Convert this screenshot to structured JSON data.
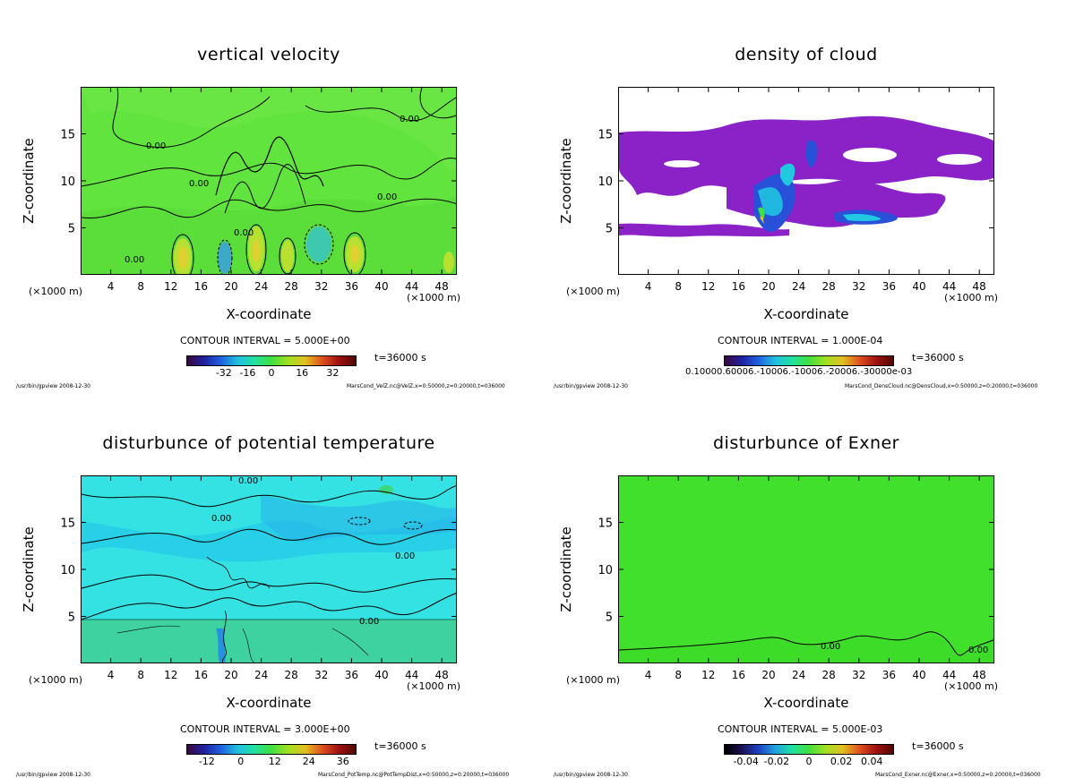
{
  "panels": [
    {
      "title": "vertical velocity",
      "ylabel": "Z-coordinate",
      "xlabel": "X-coordinate",
      "unit_left": "(×1000 m)",
      "unit_right": "(×1000 m)",
      "contour_interval": "CONTOUR INTERVAL = 5.000E+00",
      "time": "t=36000 s",
      "colorbar_ticks": [
        "-32",
        "-16",
        "0",
        "16",
        "32"
      ],
      "footer_left": "/usr/bin/gpview 2008-12-30",
      "footer_right": "MarsCond_VelZ.nc@VelZ,x=0:50000,z=0:20000,t=036000",
      "contour_labels": [
        "0.00",
        "0.00",
        "0.00",
        "0.00",
        "0.00",
        "0.00"
      ],
      "colors": {
        "background": "#5ce03a",
        "fill": "#3ed82a"
      }
    },
    {
      "title": "density of cloud",
      "ylabel": "Z-coordinate",
      "xlabel": "X-coordinate",
      "unit_left": "(×1000 m)",
      "unit_right": "(×1000 m)",
      "contour_interval": "CONTOUR INTERVAL = 1.000E-04",
      "time": "t=36000 s",
      "colorbar_ticks": [
        "0.10000.60006.-10006.-10006.-20006.-30000e-03"
      ],
      "footer_left": "/usr/bin/gpview 2008-12-30",
      "footer_right": "MarsCond_DensCloud.nc@DensCloud,x=0:50000,z=0:20000,t=036000",
      "contour_labels": [],
      "colors": {
        "background": "#ffffff",
        "fill": "#8a1fc8"
      }
    },
    {
      "title": "disturbunce of potential temperature",
      "ylabel": "Z-coordinate",
      "xlabel": "X-coordinate",
      "unit_left": "(×1000 m)",
      "unit_right": "(×1000 m)",
      "contour_interval": "CONTOUR INTERVAL = 3.000E+00",
      "time": "t=36000 s",
      "colorbar_ticks": [
        "-12",
        "0",
        "12",
        "24",
        "36"
      ],
      "footer_left": "/usr/bin/gpview 2008-12-30",
      "footer_right": "MarsCond_PotTemp.nc@PotTempDist,x=0:50000,z=0:20000,t=036000",
      "contour_labels": [
        "0.00",
        "0.00",
        "0.00",
        "0.00"
      ],
      "colors": {
        "background": "#2ee6e0",
        "fill": "#3ccf9a"
      }
    },
    {
      "title": "disturbunce of Exner",
      "ylabel": "Z-coordinate",
      "xlabel": "X-coordinate",
      "unit_left": "(×1000 m)",
      "unit_right": "(×1000 m)",
      "contour_interval": "CONTOUR INTERVAL = 5.000E-03",
      "time": "t=36000 s",
      "colorbar_ticks": [
        "-0.04",
        "-0.02",
        "0",
        "0.02",
        "0.04"
      ],
      "footer_left": "/usr/bin/gpview 2008-12-30",
      "footer_right": "MarsCond_Exner.nc@Exner,x=0:50000,z=0:20000,t=036000",
      "contour_labels": [
        "0.00",
        "0.00"
      ],
      "colors": {
        "background": "#3ee02a",
        "fill": "#3ee02a"
      }
    }
  ],
  "chart_data": [
    {
      "type": "heatmap",
      "title": "vertical velocity",
      "xlabel": "X-coordinate",
      "ylabel": "Z-coordinate",
      "x_ticks": [
        4,
        8,
        12,
        16,
        20,
        24,
        28,
        32,
        36,
        40,
        44,
        48
      ],
      "y_ticks": [
        5,
        10,
        15
      ],
      "xlim": [
        0,
        50
      ],
      "ylim": [
        0,
        20
      ],
      "colorbar_ticks": [
        -32,
        -16,
        0,
        16,
        32
      ]
    },
    {
      "type": "heatmap",
      "title": "density of cloud",
      "xlabel": "X-coordinate",
      "ylabel": "Z-coordinate",
      "x_ticks": [
        4,
        8,
        12,
        16,
        20,
        24,
        28,
        32,
        36,
        40,
        44,
        48
      ],
      "y_ticks": [
        5,
        10,
        15
      ],
      "xlim": [
        0,
        50
      ],
      "ylim": [
        0,
        20
      ]
    },
    {
      "type": "heatmap",
      "title": "disturbunce of potential temperature",
      "xlabel": "X-coordinate",
      "ylabel": "Z-coordinate",
      "x_ticks": [
        4,
        8,
        12,
        16,
        20,
        24,
        28,
        32,
        36,
        40,
        44,
        48
      ],
      "y_ticks": [
        5,
        10,
        15
      ],
      "xlim": [
        0,
        50
      ],
      "ylim": [
        0,
        20
      ],
      "colorbar_ticks": [
        -12,
        0,
        12,
        24,
        36
      ]
    },
    {
      "type": "heatmap",
      "title": "disturbunce of Exner",
      "xlabel": "X-coordinate",
      "ylabel": "Z-coordinate",
      "x_ticks": [
        4,
        8,
        12,
        16,
        20,
        24,
        28,
        32,
        36,
        40,
        44,
        48
      ],
      "y_ticks": [
        5,
        10,
        15
      ],
      "xlim": [
        0,
        50
      ],
      "ylim": [
        0,
        20
      ],
      "colorbar_ticks": [
        -0.04,
        -0.02,
        0,
        0.02,
        0.04
      ]
    }
  ]
}
